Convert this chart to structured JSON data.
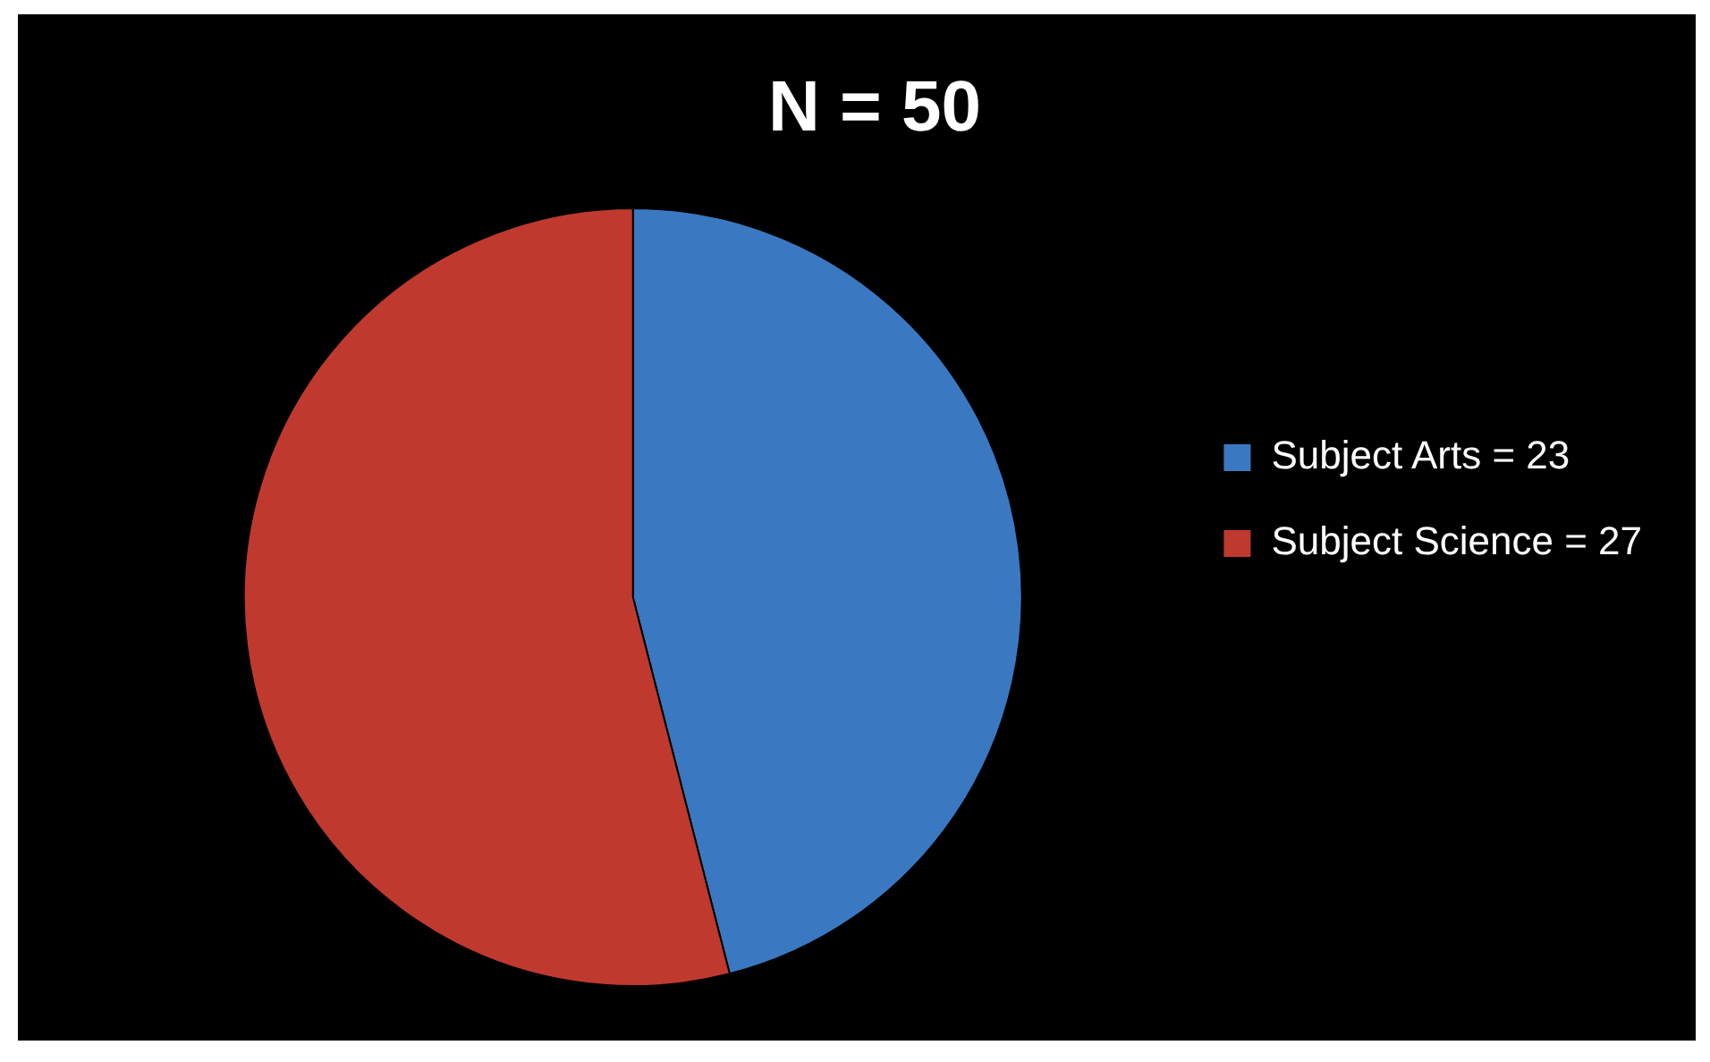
{
  "chart_data": {
    "type": "pie",
    "title": "N = 50",
    "categories": [
      "Subject Arts = 23",
      "Subject Science = 27"
    ],
    "values": [
      23,
      27
    ],
    "colors": [
      "#3b78c2",
      "#c0392f"
    ],
    "legend": "right"
  }
}
